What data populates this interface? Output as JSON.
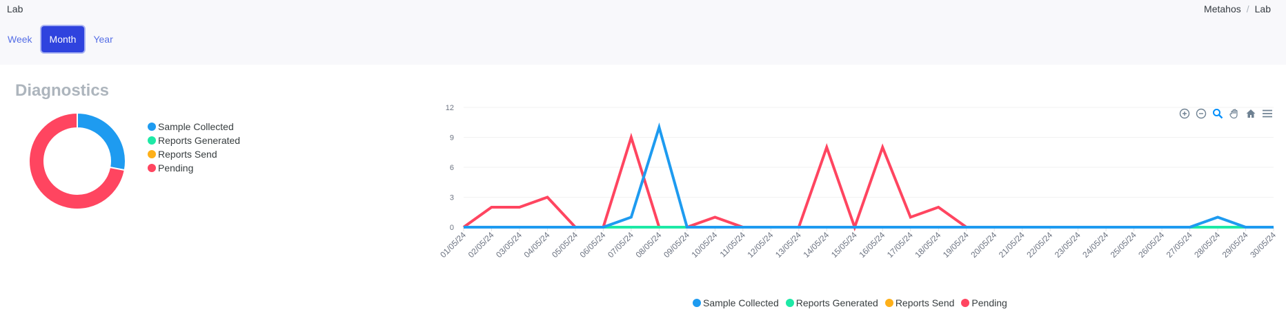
{
  "header": {
    "title": "Lab",
    "breadcrumb": [
      "Metahos",
      "Lab"
    ],
    "breadcrumb_sep": "/"
  },
  "range_tabs": [
    {
      "label": "Week",
      "active": false
    },
    {
      "label": "Month",
      "active": true
    },
    {
      "label": "Year",
      "active": false
    }
  ],
  "card": {
    "title": "Diagnostics"
  },
  "colors": {
    "sample_collected": "#1e9bf0",
    "reports_generated": "#1de9a6",
    "reports_send": "#feb019",
    "pending": "#ff4560",
    "accent": "#556ee6"
  },
  "toolbar_icons": [
    "zoom-in-icon",
    "zoom-out-icon",
    "zoom-select-icon",
    "pan-hand-icon",
    "home-reset-icon",
    "menu-icon"
  ],
  "chart_data": [
    {
      "type": "pie",
      "variant": "donut",
      "title": "",
      "labels": [
        "Sample Collected",
        "Reports Generated",
        "Reports Send",
        "Pending"
      ],
      "values": [
        14,
        0,
        0,
        36
      ],
      "legend_position": "right"
    },
    {
      "type": "line",
      "title": "",
      "xlabel": "",
      "ylabel": "",
      "ylim": [
        0,
        12
      ],
      "yticks": [
        0,
        3,
        6,
        9,
        12
      ],
      "grid": true,
      "legend_position": "bottom",
      "x": [
        "01/05/24",
        "02/05/24",
        "03/05/24",
        "04/05/24",
        "05/05/24",
        "06/05/24",
        "07/05/24",
        "08/05/24",
        "09/05/24",
        "10/05/24",
        "11/05/24",
        "12/05/24",
        "13/05/24",
        "14/05/24",
        "15/05/24",
        "16/05/24",
        "17/05/24",
        "18/05/24",
        "19/05/24",
        "20/05/24",
        "21/05/24",
        "22/05/24",
        "23/05/24",
        "24/05/24",
        "25/05/24",
        "26/05/24",
        "27/05/24",
        "28/05/24",
        "29/05/24",
        "30/05/24"
      ],
      "series": [
        {
          "name": "Sample Collected",
          "values": [
            0,
            0,
            0,
            0,
            0,
            0,
            1,
            10,
            0,
            0,
            0,
            0,
            0,
            0,
            0,
            0,
            0,
            0,
            0,
            0,
            0,
            0,
            0,
            0,
            0,
            0,
            0,
            1,
            0,
            0
          ]
        },
        {
          "name": "Reports Generated",
          "values": [
            0,
            0,
            0,
            0,
            0,
            0,
            0,
            0,
            0,
            0,
            0,
            0,
            0,
            0,
            0,
            0,
            0,
            0,
            0,
            0,
            0,
            0,
            0,
            0,
            0,
            0,
            0,
            0,
            0,
            0
          ]
        },
        {
          "name": "Reports Send",
          "values": [
            0,
            0,
            0,
            0,
            0,
            0,
            0,
            0,
            0,
            0,
            0,
            0,
            0,
            0,
            0,
            0,
            0,
            0,
            0,
            0,
            0,
            0,
            0,
            0,
            0,
            0,
            0,
            0,
            0,
            0
          ]
        },
        {
          "name": "Pending",
          "values": [
            0,
            2,
            2,
            3,
            0,
            0,
            9,
            0,
            0,
            1,
            0,
            0,
            0,
            8,
            0,
            8,
            1,
            2,
            0,
            0,
            0,
            0,
            0,
            0,
            0,
            0,
            0,
            0,
            0,
            0
          ]
        }
      ]
    }
  ]
}
